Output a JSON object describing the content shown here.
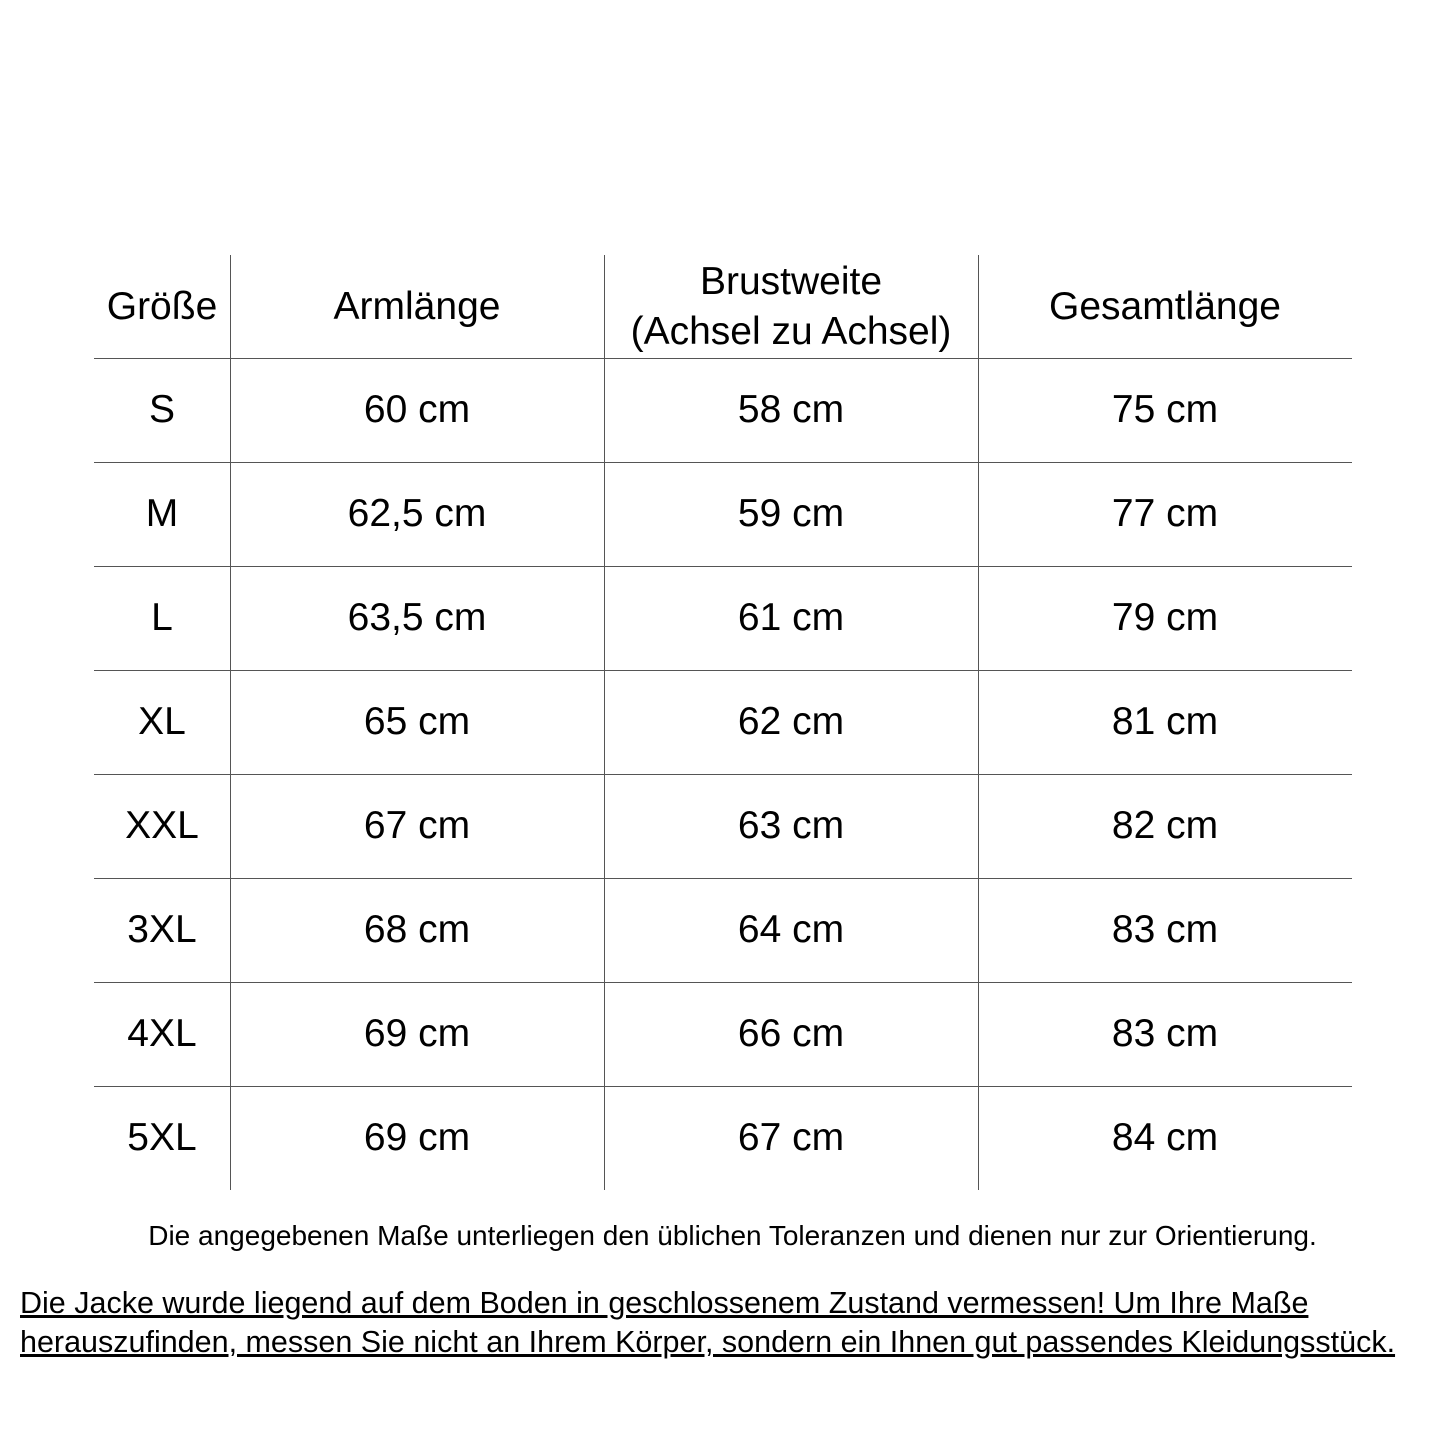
{
  "table": {
    "headers": [
      "Größe",
      "Armlänge",
      "Brustweite\n(Achsel zu Achsel)",
      "Gesamtlänge"
    ],
    "rows": [
      [
        "S",
        "60 cm",
        "58 cm",
        "75 cm"
      ],
      [
        "M",
        "62,5 cm",
        "59 cm",
        "77 cm"
      ],
      [
        "L",
        "63,5 cm",
        "61 cm",
        "79 cm"
      ],
      [
        "XL",
        "65 cm",
        "62 cm",
        "81 cm"
      ],
      [
        "XXL",
        "67 cm",
        "63 cm",
        "82 cm"
      ],
      [
        "3XL",
        "68 cm",
        "64 cm",
        "83 cm"
      ],
      [
        "4XL",
        "69 cm",
        "66 cm",
        "83 cm"
      ],
      [
        "5XL",
        "69 cm",
        "67 cm",
        "84 cm"
      ]
    ]
  },
  "footnote": "Die angegebenen Maße unterliegen den üblichen Toleranzen und dienen nur zur Orientierung.",
  "note": "Die Jacke wurde liegend auf dem Boden in geschlossenem Zustand vermessen! Um Ihre Maße herauszufinden, messen Sie nicht an Ihrem Körper, sondern ein Ihnen gut passendes Kleidungsstück."
}
